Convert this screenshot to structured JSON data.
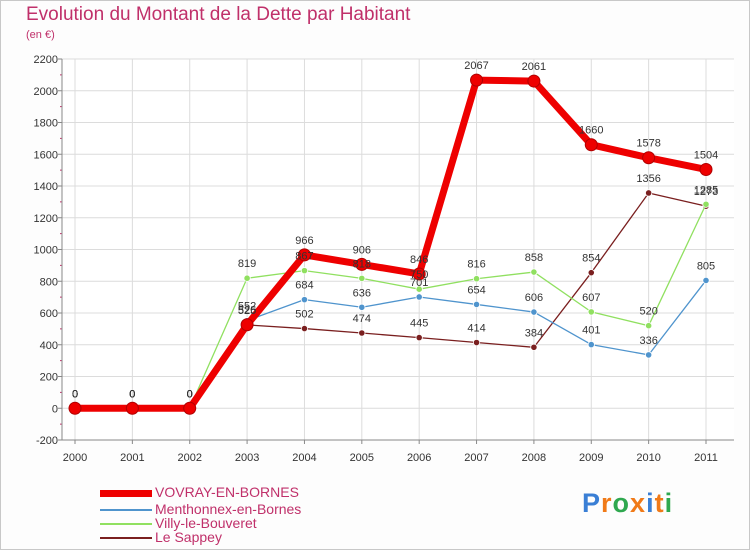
{
  "header": {
    "title": "Evolution du Montant de la Dette par Habitant",
    "unit": "(en €)"
  },
  "colors": {
    "title": "#c0306a",
    "grid": "#dcdcdc",
    "axis": "#888888"
  },
  "chart_data": {
    "type": "line",
    "title": "Evolution du Montant de la Dette par Habitant",
    "subtitle": "(en €)",
    "x": [
      "2000",
      "2001",
      "2002",
      "2003",
      "2004",
      "2005",
      "2006",
      "2007",
      "2008",
      "2009",
      "2010",
      "2011"
    ],
    "yticks": [
      "2200",
      "2000",
      "1800",
      "1600",
      "1400",
      "1200",
      "1000",
      "800",
      "600",
      "400",
      "200",
      "0",
      "-200"
    ],
    "ylim": [
      -200,
      2200
    ],
    "grid": true,
    "legend_position": "bottom-left",
    "series": [
      {
        "name": "VOVRAY-EN-BORNES",
        "color": "#ee0000",
        "labelColor": "#333333",
        "values": [
          0,
          0,
          0,
          526,
          966,
          906,
          846,
          2067,
          2061,
          1660,
          1578,
          1504
        ],
        "labels": [
          "0",
          "0",
          "0",
          "526",
          "966",
          "906",
          "846",
          "2067",
          "2061",
          "1660",
          "1578",
          "1504"
        ]
      },
      {
        "name": "Menthonnex-en-Bornes",
        "color": "#4f94cd",
        "labelColor": "#333333",
        "values": [
          0,
          0,
          0,
          552,
          684,
          636,
          701,
          654,
          606,
          401,
          336,
          805
        ],
        "labels": [
          "0",
          "0",
          "0",
          "552",
          "684",
          "636",
          "701",
          "654",
          "606",
          "401",
          "336",
          "805"
        ]
      },
      {
        "name": "Villy-le-Bouveret",
        "color": "#90e060",
        "labelColor": "#333333",
        "values": [
          0,
          0,
          0,
          819,
          867,
          818,
          750,
          816,
          858,
          607,
          520,
          1285
        ],
        "labels": [
          "0",
          "0",
          "0",
          "819",
          "867",
          "818",
          "750",
          "816",
          "858",
          "607",
          "520",
          "1285"
        ]
      },
      {
        "name": "Le Sappey",
        "color": "#7a1f1f",
        "labelColor": "#333333",
        "values": [
          0,
          0,
          0,
          525,
          502,
          474,
          445,
          414,
          384,
          854,
          1356,
          1273
        ],
        "labels": [
          "0",
          "0",
          "0",
          "525",
          "502",
          "474",
          "445",
          "414",
          "384",
          "854",
          "1356",
          "1273"
        ]
      }
    ]
  },
  "logo": {
    "letters": [
      "P",
      "r",
      "o",
      "x",
      "i",
      "t",
      "i"
    ],
    "colors": [
      "#3a7fd5",
      "#f07a18",
      "#2fa84f",
      "#f07a18",
      "#3a7fd5",
      "#f07a18",
      "#2fa84f"
    ]
  }
}
